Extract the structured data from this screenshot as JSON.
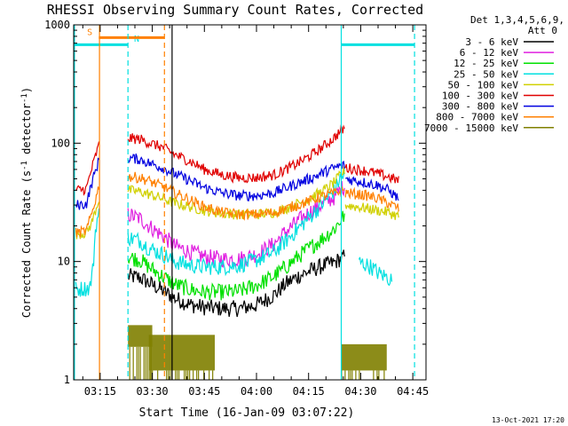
{
  "chart_data": {
    "type": "line",
    "title": "RHESSI Observing Summary Count Rates, Corrected",
    "xlabel": "Start Time (16-Jan-09 03:07:22)",
    "ylabel_main": "Corrected Count Rate (s",
    "ylabel_sup1": "-1",
    "ylabel_mid": " detector",
    "ylabel_sup2": "-1",
    "ylabel_end": ")",
    "y_scale": "log",
    "ylim": [
      1,
      1000
    ],
    "xlim_minutes": [
      187.367,
      288.8
    ],
    "y_ticks": [
      {
        "value": 1,
        "label": "1"
      },
      {
        "value": 10,
        "label": "10"
      },
      {
        "value": 100,
        "label": "100"
      },
      {
        "value": 1000,
        "label": "1000"
      }
    ],
    "x_ticks": [
      {
        "t": 195,
        "label": "03:15"
      },
      {
        "t": 210,
        "label": "03:30"
      },
      {
        "t": 225,
        "label": "03:45"
      },
      {
        "t": 240,
        "label": "04:00"
      },
      {
        "t": 255,
        "label": "04:15"
      },
      {
        "t": 270,
        "label": "04:30"
      },
      {
        "t": 285,
        "label": "04:45"
      }
    ],
    "legend": {
      "header1": "Det 1,3,4,5,6,9,",
      "header2": "Att 0",
      "placement": "right"
    },
    "series": [
      {
        "name": "3 - 6 keV",
        "color": "#000000",
        "segments": [
          {
            "t": [
              203.0,
              206.5,
              209.0,
              213.0,
              216.5,
              221.0,
              225.0,
              230.0,
              235.0,
              240.0,
              245.0,
              248.5,
              252.0,
              256.0,
              259.5,
              262.5,
              264.0,
              265.5
            ],
            "v": [
              7.5,
              7.3,
              6.6,
              5.7,
              4.9,
              4.3,
              4.1,
              4.0,
              4.0,
              4.3,
              5.2,
              6.5,
              7.5,
              8.5,
              9.3,
              9.8,
              10.5,
              11.0
            ]
          }
        ]
      },
      {
        "name": "6 - 12 keV",
        "color": "#e020e0",
        "segments": [
          {
            "t": [
              203.0,
              206.5,
              209.0,
              213.0,
              216.5,
              221.0,
              225.0,
              230.0,
              235.0,
              240.0,
              245.0,
              248.5,
              252.0,
              256.0,
              259.5,
              262.5,
              264.0,
              265.5
            ],
            "v": [
              25.0,
              23.0,
              20.0,
              16.5,
              13.5,
              12.0,
              11.0,
              10.5,
              10.5,
              11.5,
              14.0,
              18.0,
              22.0,
              27.0,
              31.0,
              35.0,
              40.0,
              44.0
            ]
          }
        ]
      },
      {
        "name": "12 - 25 keV",
        "color": "#00e000",
        "segments": [
          {
            "t": [
              203.0,
              206.5,
              209.0,
              213.0,
              216.5,
              221.0,
              225.0,
              230.0,
              235.0,
              240.0,
              245.0,
              248.5,
              252.0,
              256.0,
              259.5,
              262.5,
              264.0,
              265.5
            ],
            "v": [
              11.0,
              10.3,
              9.0,
              7.5,
              6.4,
              5.8,
              5.5,
              5.5,
              5.6,
              6.3,
              7.5,
              9.0,
              11.0,
              13.5,
              16.0,
              19.0,
              22.0,
              25.0
            ]
          }
        ]
      },
      {
        "name": "25 - 50 keV",
        "color": "#00e0e0",
        "segments": [
          {
            "t": [
              188.0,
              192.0,
              193.0,
              193.5,
              194.0,
              194.8
            ],
            "v": [
              5.8,
              6.0,
              9.0,
              17.0,
              22.0,
              26.0
            ]
          },
          {
            "t": [
              203.0,
              206.5,
              209.0,
              213.0,
              216.5,
              221.0,
              225.0,
              230.0,
              235.0,
              240.0,
              245.0,
              248.5,
              252.0,
              256.0,
              259.5,
              262.5,
              264.0,
              265.5
            ],
            "v": [
              16.0,
              15.0,
              13.0,
              11.5,
              10.0,
              9.3,
              9.0,
              9.0,
              9.3,
              10.3,
              12.0,
              15.0,
              19.0,
              25.0,
              32.0,
              40.0,
              50.0,
              55.0
            ]
          },
          {
            "t": [
              269.5,
              271.0,
              273.0,
              275.0,
              277.0,
              279.0
            ],
            "v": [
              10.0,
              9.5,
              9.0,
              8.0,
              7.5,
              7.0
            ]
          }
        ]
      },
      {
        "name": "50 - 100 keV",
        "color": "#d0d000",
        "segments": [
          {
            "t": [
              188.0,
              191.0,
              192.5,
              194.8
            ],
            "v": [
              17.0,
              17.5,
              21.0,
              35.0
            ]
          },
          {
            "t": [
              203.0,
              206.5,
              209.0,
              213.0,
              216.5,
              221.0,
              225.0,
              230.0,
              235.0,
              240.0,
              245.0,
              248.5,
              252.0,
              256.0,
              259.5,
              262.5,
              264.0,
              265.5
            ],
            "v": [
              40.0,
              39.0,
              37.0,
              34.0,
              31.0,
              29.0,
              27.0,
              25.5,
              25.0,
              25.0,
              26.0,
              28.0,
              31.0,
              35.0,
              40.0,
              47.0,
              53.0,
              60.0
            ]
          },
          {
            "t": [
              265.6,
              269.0,
              272.0,
              275.0,
              278.0,
              281.0
            ],
            "v": [
              30.0,
              29.0,
              28.0,
              27.0,
              26.0,
              24.0
            ]
          }
        ]
      },
      {
        "name": "100 - 300 keV",
        "color": "#e00000",
        "segments": [
          {
            "t": [
              188.0,
              191.0,
              192.5,
              194.8
            ],
            "v": [
              40.0,
              41.0,
              60.0,
              100.0
            ]
          },
          {
            "t": [
              203.0,
              206.5,
              209.0,
              213.0,
              216.5,
              221.0,
              225.0,
              230.0,
              235.0,
              240.0,
              245.0,
              248.5,
              252.0,
              256.0,
              259.5,
              262.5,
              264.0,
              265.5
            ],
            "v": [
              110.0,
              108.0,
              101.0,
              92.0,
              80.0,
              70.0,
              60.0,
              54.0,
              51.0,
              51.0,
              54.0,
              60.0,
              68.0,
              80.0,
              95.0,
              112.0,
              125.0,
              135.0
            ]
          },
          {
            "t": [
              265.6,
              269.0,
              272.0,
              275.0,
              278.0,
              281.0
            ],
            "v": [
              62.0,
              60.0,
              58.0,
              55.0,
              52.0,
              48.0
            ]
          }
        ]
      },
      {
        "name": "300 - 800 keV",
        "color": "#0000e0",
        "segments": [
          {
            "t": [
              188.0,
              191.0,
              192.5,
              194.8
            ],
            "v": [
              30.0,
              30.5,
              45.0,
              75.0
            ]
          },
          {
            "t": [
              203.0,
              206.5,
              209.0,
              213.0,
              216.5,
              221.0,
              225.0,
              230.0,
              235.0,
              240.0,
              245.0,
              248.5,
              252.0,
              256.0,
              259.5,
              262.5,
              264.0,
              265.5
            ],
            "v": [
              75.0,
              73.0,
              68.0,
              62.0,
              55.0,
              48.0,
              42.0,
              38.0,
              36.0,
              36.0,
              38.0,
              42.0,
              46.0,
              51.0,
              57.0,
              62.0,
              64.0,
              65.0
            ]
          },
          {
            "t": [
              265.6,
              269.0,
              272.0,
              275.0,
              278.0,
              281.0
            ],
            "v": [
              50.0,
              48.0,
              46.0,
              44.0,
              40.0,
              34.0
            ]
          }
        ]
      },
      {
        "name": "800 - 7000 keV",
        "color": "#ff8000",
        "segments": [
          {
            "t": [
              188.0,
              191.0,
              192.5,
              194.8
            ],
            "v": [
              17.5,
              18.0,
              25.0,
              45.0
            ]
          },
          {
            "t": [
              203.0,
              206.5,
              209.0,
              213.0,
              216.5,
              221.0,
              225.0,
              230.0,
              235.0,
              240.0,
              245.0,
              248.5,
              252.0,
              256.0,
              259.5,
              262.5,
              264.0,
              265.5
            ],
            "v": [
              52.0,
              51.0,
              48.0,
              43.0,
              38.0,
              33.0,
              29.0,
              26.0,
              25.0,
              25.0,
              26.0,
              28.0,
              30.0,
              33.0,
              36.0,
              38.0,
              39.0,
              40.0
            ]
          },
          {
            "t": [
              265.6,
              269.0,
              272.0,
              275.0,
              278.0,
              281.0
            ],
            "v": [
              38.0,
              37.0,
              36.0,
              34.0,
              31.0,
              28.0
            ]
          }
        ]
      },
      {
        "name": "7000 - 15000 keV",
        "color": "#808000",
        "segments": [],
        "blocks": [
          {
            "t0": 203.0,
            "t1": 210.0,
            "v_lo": 1.9,
            "v_hi": 2.9
          },
          {
            "t0": 209.0,
            "t1": 228.0,
            "v_lo": 1.2,
            "v_hi": 2.4
          },
          {
            "t0": 264.5,
            "t1": 277.5,
            "v_lo": 1.2,
            "v_hi": 2.0
          }
        ]
      }
    ],
    "annotations": [
      {
        "type": "marker",
        "label": "S",
        "color": "#ff8000",
        "t": 192.0,
        "v": 820
      },
      {
        "type": "marker",
        "label": "N",
        "color": "#00e0e0",
        "t": 205.5,
        "v": 720
      },
      {
        "type": "level",
        "color": "#ff8000",
        "t0": 194.6,
        "t1": 213.5,
        "v": 780
      },
      {
        "type": "level",
        "color": "#00e0e0",
        "t0": 187.6,
        "t1": 203.0,
        "v": 680
      },
      {
        "type": "level",
        "color": "#00e0e0",
        "t0": 264.4,
        "t1": 285.5,
        "v": 680
      },
      {
        "type": "vline",
        "color": "#ff8000",
        "style": "solid",
        "t": 194.8
      },
      {
        "type": "vline",
        "color": "#ff8000",
        "style": "dashed",
        "t": 213.5
      },
      {
        "type": "vline",
        "color": "#00e0e0",
        "style": "solid",
        "t": 187.6
      },
      {
        "type": "vline",
        "color": "#00e0e0",
        "style": "dashed",
        "t": 203.0
      },
      {
        "type": "vline",
        "color": "#00e0e0",
        "style": "solid",
        "t": 264.4
      },
      {
        "type": "vline",
        "color": "#00e0e0",
        "style": "dashed",
        "t": 285.5
      },
      {
        "type": "vline",
        "color": "#000000",
        "style": "solid",
        "t": 215.7
      }
    ]
  },
  "timestamp": "13-Oct-2021 17:20"
}
